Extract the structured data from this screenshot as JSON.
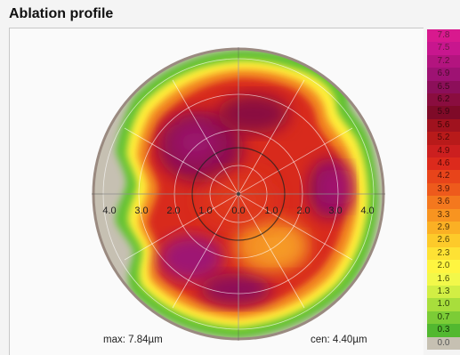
{
  "title": "Ablation profile",
  "axis_labels": [
    "4.0",
    "3.0",
    "2.0",
    "1.0",
    "0.0",
    "1.0",
    "2.0",
    "3.0",
    "4.0"
  ],
  "footer": {
    "max": "max: 7.84µm",
    "cen": "cen: 4.40µm"
  },
  "scale": [
    {
      "label": "7.8",
      "color": "#d8198e",
      "text": "#6a1a44"
    },
    {
      "label": "7.5",
      "color": "#c8168e",
      "text": "#6a1a44"
    },
    {
      "label": "7.2",
      "color": "#b3147f",
      "text": "#5a1236"
    },
    {
      "label": "6.9",
      "color": "#9e1273",
      "text": "#4a0e2c"
    },
    {
      "label": "6.5",
      "color": "#8c0f5a",
      "text": "#40091e"
    },
    {
      "label": "6.2",
      "color": "#8a0d3f",
      "text": "#3a0612"
    },
    {
      "label": "5.9",
      "color": "#7f0a28",
      "text": "#3a0612"
    },
    {
      "label": "5.6",
      "color": "#a0121e",
      "text": "#420606"
    },
    {
      "label": "5.2",
      "color": "#b81a1a",
      "text": "#500808"
    },
    {
      "label": "4.9",
      "color": "#cc1f1f",
      "text": "#5a0909"
    },
    {
      "label": "4.6",
      "color": "#dc2a1c",
      "text": "#5a0909"
    },
    {
      "label": "4.2",
      "color": "#e8441a",
      "text": "#5a1209"
    },
    {
      "label": "3.9",
      "color": "#ee5a1c",
      "text": "#5a1a09"
    },
    {
      "label": "3.6",
      "color": "#f4781e",
      "text": "#5a2409"
    },
    {
      "label": "3.3",
      "color": "#f89420",
      "text": "#5a3009"
    },
    {
      "label": "2.9",
      "color": "#fbb024",
      "text": "#5a3a09"
    },
    {
      "label": "2.6",
      "color": "#fdca2a",
      "text": "#5a4609"
    },
    {
      "label": "2.3",
      "color": "#fee234",
      "text": "#5a4e09"
    },
    {
      "label": "2.0",
      "color": "#fff540",
      "text": "#5a5609"
    },
    {
      "label": "1.6",
      "color": "#f2f84a",
      "text": "#4a5009"
    },
    {
      "label": "1.3",
      "color": "#d2ee44",
      "text": "#3a4a09"
    },
    {
      "label": "1.0",
      "color": "#a8de3c",
      "text": "#2e4409"
    },
    {
      "label": "0.7",
      "color": "#7ccc36",
      "text": "#1e3a06"
    },
    {
      "label": "0.3",
      "color": "#52b830",
      "text": "#143006"
    },
    {
      "label": "0.0",
      "color": "#c6c0b2",
      "text": "#555555"
    }
  ]
}
